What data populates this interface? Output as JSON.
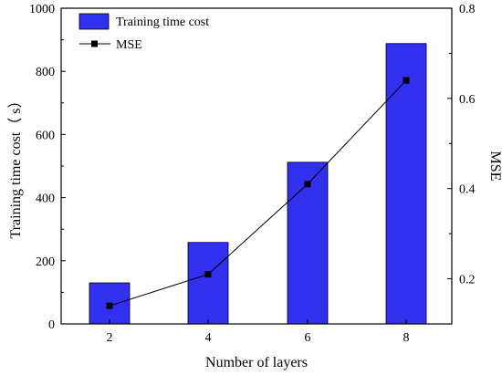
{
  "chart_data": {
    "type": "bar",
    "categories": [
      "2",
      "4",
      "6",
      "8"
    ],
    "xlabel": "Number of layers",
    "left_axis": {
      "label": "Training time cost（ s）",
      "range": [
        0,
        1000
      ],
      "ticks": [
        "0",
        "200",
        "400",
        "600",
        "800",
        "1000"
      ]
    },
    "right_axis": {
      "label": "MSE",
      "range": [
        0.1,
        0.8
      ],
      "ticks": [
        "0.2",
        "0.4",
        "0.6",
        "0.8"
      ]
    },
    "series": [
      {
        "name": "Training time cost",
        "type": "bar",
        "axis": "left",
        "color": "#3030ee",
        "values": [
          130,
          258,
          512,
          888
        ]
      },
      {
        "name": "MSE",
        "type": "line",
        "axis": "right",
        "color": "#000000",
        "marker": "square",
        "values": [
          0.14,
          0.21,
          0.41,
          0.64
        ]
      }
    ],
    "legend": "top-left",
    "grid": false
  }
}
